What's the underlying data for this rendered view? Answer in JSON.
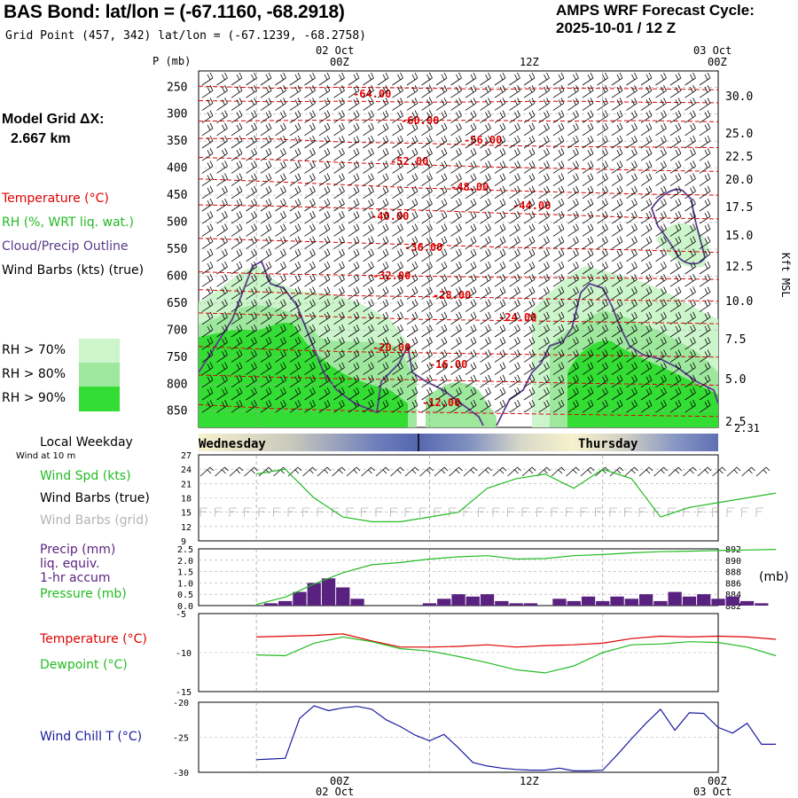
{
  "header": {
    "title": "BAS Bond:  lat/lon = (-67.1160, -68.2918)",
    "grid_point": "Grid Point (457, 342) lat/lon = (-67.1239, -68.2758)",
    "cycle_line1": "AMPS WRF Forecast Cycle:",
    "cycle_line2": "2025-10-01 / 12  Z"
  },
  "model_grid": {
    "line1": "Model Grid ΔX:",
    "line2": "2.667 km"
  },
  "top_time_axis": {
    "date_left": "02 Oct",
    "date_right": "03 Oct",
    "ticks": [
      "00Z",
      "12Z",
      "00Z"
    ]
  },
  "bottom_time_axis": {
    "date_left": "02 Oct",
    "date_right": "03 Oct",
    "ticks": [
      "00Z",
      "12Z",
      "00Z"
    ]
  },
  "legend_upper": {
    "temperature": "Temperature (°C)",
    "rh": "RH (%, WRT liq. wat.)",
    "cloud": "Cloud/Precip Outline",
    "wind": "Wind Barbs (kts) (true)",
    "rh_classes": [
      "RH > 70%",
      "RH > 80%",
      "RH > 90%"
    ]
  },
  "colors": {
    "temperature": "#e00000",
    "rh70": "#ccf5cc",
    "rh80": "#9ee89e",
    "rh90": "#33dd33",
    "cloud": "#5a3a8a",
    "wind_spd": "#22bb22",
    "wind_grid": "#b4b4b4",
    "precip": "#5a2280",
    "pressure": "#22bb22",
    "dewpoint": "#22bb22",
    "wind_chill": "#1a1aa0",
    "day_bar": "#6677bb"
  },
  "legend_lower": {
    "local_weekday": "Local Weekday",
    "wind_at": "Wind at 10 m",
    "wind_spd": "Wind Spd (kts)",
    "wind_true": "Wind Barbs (true)",
    "wind_grid": "Wind Barbs (grid)",
    "precip1": "Precip (mm)",
    "precip2": "liq. equiv.",
    "precip3": "1-hr accum",
    "pressure": "Pressure (mb)",
    "temperature": "Temperature (°C)",
    "dewpoint": "Dewpoint (°C)",
    "windchill": "Wind Chill T (°C)",
    "pressure_unit": "(mb)"
  },
  "chart_data": [
    {
      "type": "heatmap",
      "description_axes": "pressure vs time cross-section",
      "ylabel": "P (mb)",
      "y_ticks": [
        "250",
        "300",
        "350",
        "400",
        "450",
        "500",
        "550",
        "600",
        "650",
        "700",
        "750",
        "800",
        "850"
      ],
      "right_label": "Kft MSL",
      "right_ticks": [
        "30.0",
        "25.0",
        "22.5",
        "20.0",
        "17.5",
        "15.0",
        "12.5",
        "10.0",
        "7.5",
        "5.0",
        "2.5"
      ],
      "surface_label": "2.31",
      "x_hours": [
        0,
        36
      ],
      "isotherm_labels": [
        "-64.00",
        "-60.00",
        "-56.00",
        "-52.00",
        "-48.00",
        "-44.00",
        "-40.00",
        "-36.00",
        "-32.00",
        "-28.00",
        "-24.00",
        "-20.00",
        "-16.00",
        "-12.00"
      ],
      "isotherms": [
        {
          "label": "-64.00",
          "p": [
            248,
            252,
            250,
            252,
            254,
            252,
            253,
            255
          ]
        },
        {
          "label": "-60.00",
          "p": [
            275,
            277,
            276,
            278,
            277,
            276,
            278,
            279
          ]
        },
        {
          "label": "-56.00",
          "p": [
            313,
            312,
            311,
            311,
            312,
            313,
            312,
            314
          ]
        },
        {
          "label": "-52.00",
          "p": [
            345,
            346,
            352,
            354,
            358,
            360,
            361,
            362
          ]
        },
        {
          "label": "-48.00",
          "p": [
            380,
            384,
            390,
            394,
            398,
            401,
            404,
            406
          ]
        },
        {
          "label": "-44.00",
          "p": [
            420,
            425,
            431,
            437,
            441,
            445,
            448,
            450
          ]
        },
        {
          "label": "-40.00",
          "p": [
            468,
            470,
            474,
            478,
            483,
            487,
            492,
            494
          ]
        },
        {
          "label": "-36.00",
          "p": [
            530,
            534,
            538,
            542,
            546,
            549,
            552,
            556
          ]
        },
        {
          "label": "-32.00",
          "p": [
            592,
            596,
            598,
            600,
            602,
            603,
            604,
            606
          ]
        },
        {
          "label": "-28.00",
          "p": [
            625,
            630,
            636,
            638,
            640,
            643,
            645,
            646
          ]
        },
        {
          "label": "-24.00",
          "p": [
            668,
            672,
            676,
            680,
            682,
            684,
            686,
            688
          ]
        },
        {
          "label": "-20.00",
          "p": [
            730,
            736,
            740,
            742,
            744,
            746,
            748,
            750
          ]
        },
        {
          "label": "-16.00",
          "p": [
            783,
            787,
            790,
            792,
            795,
            798,
            800,
            802
          ]
        },
        {
          "label": "-12.00",
          "p": [
            838,
            845,
            849,
            852,
            854,
            856,
            858,
            860
          ]
        }
      ]
    },
    {
      "type": "bar",
      "day_labels": [
        "Wednesday",
        "Thursday"
      ]
    },
    {
      "type": "line",
      "name": "wind-speed",
      "y_ticks": [
        "27",
        "24",
        "21",
        "18",
        "15",
        "12",
        "9"
      ],
      "ylim": [
        9,
        27
      ],
      "x_hours": [
        0,
        2,
        4,
        6,
        8,
        10,
        12,
        14,
        16,
        18,
        20,
        22,
        24,
        26,
        28,
        30,
        32,
        34,
        36
      ],
      "values": [
        23,
        24,
        18,
        14,
        13,
        13,
        14,
        15,
        20,
        22,
        23,
        20,
        24,
        22,
        14,
        16,
        17,
        18,
        19
      ]
    },
    {
      "type": "bar",
      "name": "precip-pressure",
      "y_ticks": [
        "2.5",
        "2.0",
        "1.5",
        "1.0",
        "0.5",
        "0.0"
      ],
      "right_ticks": [
        "892",
        "890",
        "888",
        "886",
        "884",
        "882"
      ],
      "ylim": [
        0,
        2.5
      ],
      "pressure_lim": [
        882,
        892
      ],
      "precip_hours": [
        1,
        2,
        3,
        4,
        5,
        6,
        7,
        8,
        9,
        10,
        11,
        12,
        13,
        14,
        15,
        16,
        17,
        18,
        19,
        20,
        21,
        22,
        23,
        24,
        25,
        26,
        27,
        28,
        29,
        30,
        31,
        32,
        33,
        34,
        35
      ],
      "precip": [
        0.1,
        0.2,
        0.6,
        1.0,
        1.2,
        0.8,
        0.3,
        0,
        0,
        0,
        0,
        0.1,
        0.3,
        0.5,
        0.4,
        0.5,
        0.2,
        0.1,
        0.1,
        0,
        0.3,
        0.2,
        0.4,
        0.2,
        0.4,
        0.3,
        0.5,
        0.2,
        0.6,
        0.4,
        0.5,
        0.3,
        0.4,
        0.2,
        0.1
      ],
      "pressure_hours": [
        0,
        2,
        4,
        6,
        8,
        10,
        12,
        14,
        16,
        18,
        20,
        22,
        24,
        26,
        28,
        30,
        32,
        34,
        36
      ],
      "pressure": [
        882.2,
        883.5,
        885.8,
        887.8,
        889.2,
        889.6,
        890.2,
        890.6,
        890.8,
        890.2,
        890.3,
        890.8,
        891.0,
        891.3,
        891.5,
        891.6,
        891.7,
        891.8,
        891.9
      ]
    },
    {
      "type": "line",
      "name": "temperature-dewpoint",
      "y_ticks": [
        "-5",
        "-10",
        "-15"
      ],
      "ylim": [
        -15,
        -5
      ],
      "x_hours": [
        0,
        2,
        4,
        6,
        8,
        10,
        12,
        14,
        16,
        18,
        20,
        22,
        24,
        26,
        28,
        30,
        32,
        34,
        36
      ],
      "series": [
        {
          "name": "Temperature",
          "values": [
            -8.0,
            -7.9,
            -7.8,
            -7.6,
            -8.5,
            -9.3,
            -9.3,
            -9.2,
            -9.0,
            -9.3,
            -9.1,
            -9.0,
            -8.8,
            -8.2,
            -7.9,
            -8.0,
            -7.9,
            -8.0,
            -8.3
          ]
        },
        {
          "name": "Dewpoint",
          "values": [
            -10.3,
            -10.4,
            -8.8,
            -8.0,
            -8.6,
            -9.5,
            -9.8,
            -10.5,
            -11.3,
            -12.2,
            -12.6,
            -11.7,
            -10.0,
            -9.0,
            -8.9,
            -8.6,
            -8.7,
            -9.3,
            -10.4
          ]
        }
      ]
    },
    {
      "type": "line",
      "name": "wind-chill",
      "y_ticks": [
        "-20",
        "-25",
        "-30"
      ],
      "ylim": [
        -30,
        -20
      ],
      "x_hours": [
        0,
        1,
        2,
        3,
        4,
        5,
        6,
        7,
        8,
        9,
        10,
        11,
        12,
        13,
        14,
        15,
        16,
        17,
        18,
        19,
        20,
        21,
        22,
        23,
        24,
        25,
        26,
        27,
        28,
        29,
        30,
        31,
        32,
        33,
        34,
        35,
        36
      ],
      "values": [
        -28.2,
        -28.1,
        -28.0,
        -22.3,
        -20.5,
        -21.2,
        -20.8,
        -20.6,
        -21.0,
        -22.5,
        -23.5,
        -24.7,
        -25.5,
        -24.6,
        -26.5,
        -28.6,
        -29.1,
        -29.4,
        -29.6,
        -29.7,
        -29.7,
        -29.4,
        -29.8,
        -29.8,
        -29.7,
        -27.5,
        -25.2,
        -23.0,
        -21.0,
        -24.0,
        -21.5,
        -21.6,
        -23.6,
        -24.4,
        -23.0,
        -26.0,
        -26.0
      ]
    }
  ]
}
